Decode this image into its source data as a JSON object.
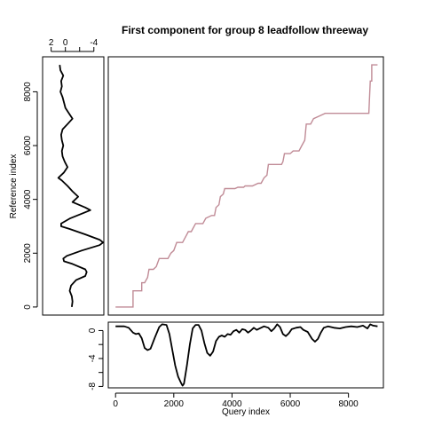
{
  "chart_data": [
    {
      "type": "line",
      "panel": "warping-path",
      "title": "First component for group 8 leadfollow threeway",
      "color": "#c08b96",
      "xlim": [
        -250,
        9200
      ],
      "ylim": [
        -300,
        9300
      ],
      "path": [
        [
          0,
          0
        ],
        [
          600,
          0
        ],
        [
          600,
          600
        ],
        [
          900,
          600
        ],
        [
          900,
          900
        ],
        [
          1000,
          900
        ],
        [
          1050,
          1000
        ],
        [
          1100,
          1100
        ],
        [
          1150,
          1400
        ],
        [
          1300,
          1400
        ],
        [
          1400,
          1500
        ],
        [
          1500,
          1800
        ],
        [
          1800,
          1800
        ],
        [
          1900,
          2000
        ],
        [
          2000,
          2100
        ],
        [
          2100,
          2400
        ],
        [
          2300,
          2400
        ],
        [
          2450,
          2700
        ],
        [
          2500,
          2800
        ],
        [
          2600,
          2800
        ],
        [
          2650,
          2900
        ],
        [
          2750,
          3100
        ],
        [
          3000,
          3100
        ],
        [
          3100,
          3300
        ],
        [
          3300,
          3400
        ],
        [
          3400,
          3400
        ],
        [
          3450,
          3700
        ],
        [
          3550,
          3800
        ],
        [
          3600,
          4100
        ],
        [
          3700,
          4200
        ],
        [
          3750,
          4400
        ],
        [
          4100,
          4400
        ],
        [
          4200,
          4450
        ],
        [
          4400,
          4450
        ],
        [
          4450,
          4500
        ],
        [
          4700,
          4500
        ],
        [
          4900,
          4600
        ],
        [
          5000,
          4600
        ],
        [
          5100,
          4800
        ],
        [
          5200,
          4900
        ],
        [
          5250,
          5300
        ],
        [
          5700,
          5300
        ],
        [
          5750,
          5400
        ],
        [
          5800,
          5700
        ],
        [
          6000,
          5700
        ],
        [
          6100,
          5800
        ],
        [
          6300,
          5800
        ],
        [
          6400,
          6000
        ],
        [
          6500,
          6200
        ],
        [
          6550,
          6800
        ],
        [
          6700,
          6800
        ],
        [
          6800,
          7000
        ],
        [
          7000,
          7100
        ],
        [
          7200,
          7200
        ],
        [
          8700,
          7200
        ],
        [
          8750,
          8400
        ],
        [
          8800,
          8400
        ],
        [
          8800,
          9000
        ],
        [
          9000,
          9000
        ]
      ],
      "xticks": [
        0,
        2000,
        4000,
        6000,
        8000
      ]
    },
    {
      "type": "line",
      "panel": "query",
      "xlabel": "Query index",
      "xlim": [
        -250,
        9200
      ],
      "ylim": [
        -8.2,
        1.2
      ],
      "yticks": [
        0,
        -4,
        -8
      ],
      "ytick_minor": [
        -2,
        -6
      ],
      "xticks": [
        0,
        2000,
        4000,
        6000,
        8000
      ],
      "series": [
        {
          "values": [
            [
              0,
              0.6
            ],
            [
              300,
              0.6
            ],
            [
              450,
              0.4
            ],
            [
              600,
              -0.3
            ],
            [
              700,
              -0.5
            ],
            [
              800,
              -0.4
            ],
            [
              900,
              -1.1
            ],
            [
              1000,
              -2.5
            ],
            [
              1100,
              -2.8
            ],
            [
              1200,
              -2.6
            ],
            [
              1350,
              -1.0
            ],
            [
              1500,
              0.5
            ],
            [
              1600,
              0.9
            ],
            [
              1750,
              0.8
            ],
            [
              1850,
              -0.5
            ],
            [
              1950,
              -2.8
            ],
            [
              2050,
              -5.0
            ],
            [
              2150,
              -6.6
            ],
            [
              2250,
              -7.5
            ],
            [
              2300,
              -7.9
            ],
            [
              2350,
              -7.6
            ],
            [
              2450,
              -5.0
            ],
            [
              2550,
              -2.0
            ],
            [
              2650,
              0.3
            ],
            [
              2750,
              0.8
            ],
            [
              2850,
              0.8
            ],
            [
              2950,
              0.0
            ],
            [
              3050,
              -1.8
            ],
            [
              3150,
              -3.2
            ],
            [
              3250,
              -3.6
            ],
            [
              3350,
              -3.0
            ],
            [
              3450,
              -1.5
            ],
            [
              3550,
              -0.9
            ],
            [
              3650,
              -0.7
            ],
            [
              3750,
              -0.9
            ],
            [
              3850,
              -0.5
            ],
            [
              3950,
              -0.6
            ],
            [
              4050,
              -0.1
            ],
            [
              4150,
              0.1
            ],
            [
              4250,
              -0.3
            ],
            [
              4350,
              0.2
            ],
            [
              4450,
              0.1
            ],
            [
              4550,
              -0.3
            ],
            [
              4650,
              0.0
            ],
            [
              4750,
              0.4
            ],
            [
              4850,
              0.1
            ],
            [
              4950,
              0.3
            ],
            [
              5100,
              0.6
            ],
            [
              5250,
              0.4
            ],
            [
              5350,
              -0.1
            ],
            [
              5450,
              0.3
            ],
            [
              5550,
              0.9
            ],
            [
              5650,
              0.5
            ],
            [
              5750,
              -0.5
            ],
            [
              5850,
              -0.8
            ],
            [
              5950,
              -0.4
            ],
            [
              6050,
              0.2
            ],
            [
              6200,
              0.4
            ],
            [
              6350,
              0.5
            ],
            [
              6450,
              0.1
            ],
            [
              6600,
              -0.2
            ],
            [
              6750,
              -1.2
            ],
            [
              6850,
              -1.6
            ],
            [
              6950,
              -1.2
            ],
            [
              7050,
              -0.3
            ],
            [
              7150,
              0.4
            ],
            [
              7300,
              0.6
            ],
            [
              7500,
              0.4
            ],
            [
              7700,
              0.3
            ],
            [
              7900,
              0.5
            ],
            [
              8100,
              0.6
            ],
            [
              8300,
              0.5
            ],
            [
              8500,
              0.7
            ],
            [
              8650,
              0.3
            ],
            [
              8750,
              0.9
            ],
            [
              8850,
              0.7
            ],
            [
              9000,
              0.6
            ]
          ]
        }
      ]
    },
    {
      "type": "line",
      "panel": "reference",
      "ylabel": "Reference index",
      "ylim": [
        -300,
        9300
      ],
      "xlim_reversed": [
        3.2,
        -5.4
      ],
      "xticks": [
        2,
        0,
        -4
      ],
      "xtick_minor": [
        -2
      ],
      "yticks": [
        0,
        2000,
        4000,
        6000,
        8000
      ],
      "series": [
        {
          "values": [
            [
              9000,
              0.8
            ],
            [
              8800,
              0.7
            ],
            [
              8600,
              0.3
            ],
            [
              8400,
              0.6
            ],
            [
              8200,
              0.5
            ],
            [
              8000,
              0.7
            ],
            [
              7800,
              0.4
            ],
            [
              7600,
              0.2
            ],
            [
              7400,
              0.0
            ],
            [
              7200,
              -0.5
            ],
            [
              7000,
              -1.0
            ],
            [
              6800,
              -0.3
            ],
            [
              6600,
              0.4
            ],
            [
              6400,
              0.6
            ],
            [
              6200,
              0.5
            ],
            [
              6000,
              0.3
            ],
            [
              5800,
              0.5
            ],
            [
              5600,
              0.4
            ],
            [
              5400,
              0.1
            ],
            [
              5200,
              -0.3
            ],
            [
              5000,
              0.2
            ],
            [
              4800,
              1.0
            ],
            [
              4700,
              0.5
            ],
            [
              4500,
              -0.3
            ],
            [
              4300,
              -1.0
            ],
            [
              4100,
              -1.8
            ],
            [
              3900,
              -1.0
            ],
            [
              3700,
              -2.8
            ],
            [
              3600,
              -3.5
            ],
            [
              3500,
              -2.6
            ],
            [
              3300,
              -0.7
            ],
            [
              3100,
              0.6
            ],
            [
              3000,
              0.6
            ],
            [
              2900,
              -0.6
            ],
            [
              2700,
              -2.8
            ],
            [
              2500,
              -4.8
            ],
            [
              2400,
              -5.3
            ],
            [
              2300,
              -4.8
            ],
            [
              2100,
              -2.3
            ],
            [
              1900,
              -0.2
            ],
            [
              1800,
              0.3
            ],
            [
              1700,
              0.2
            ],
            [
              1600,
              -1.0
            ],
            [
              1400,
              -2.8
            ],
            [
              1300,
              -3.0
            ],
            [
              1150,
              -2.8
            ],
            [
              1000,
              -1.5
            ],
            [
              800,
              -0.8
            ],
            [
              600,
              -0.6
            ],
            [
              400,
              -0.9
            ],
            [
              200,
              -1.0
            ],
            [
              0,
              -0.9
            ]
          ]
        }
      ]
    }
  ]
}
